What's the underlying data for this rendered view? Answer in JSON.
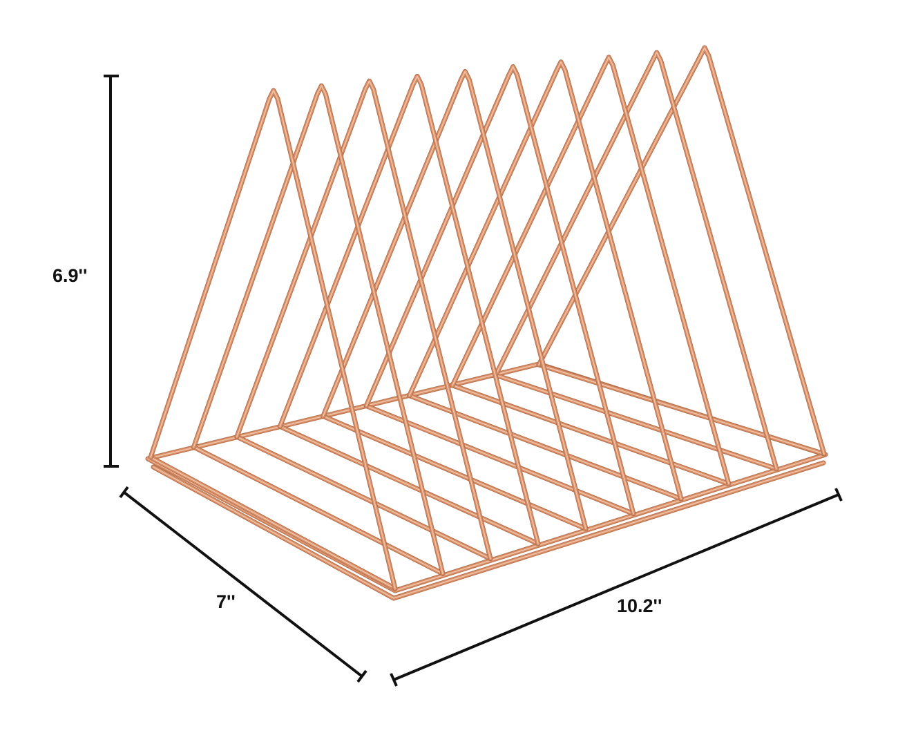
{
  "image": {
    "subject": "wire triangle file organizer rack",
    "colors": {
      "wire": "#d7906a",
      "wire_highlight": "#f3c3a4",
      "wire_shadow": "#b66f4c",
      "dimension_line": "#111111",
      "background": "#ffffff"
    }
  },
  "dimensions": {
    "height": "6.9''",
    "depth": "7''",
    "width": "10.2''"
  }
}
